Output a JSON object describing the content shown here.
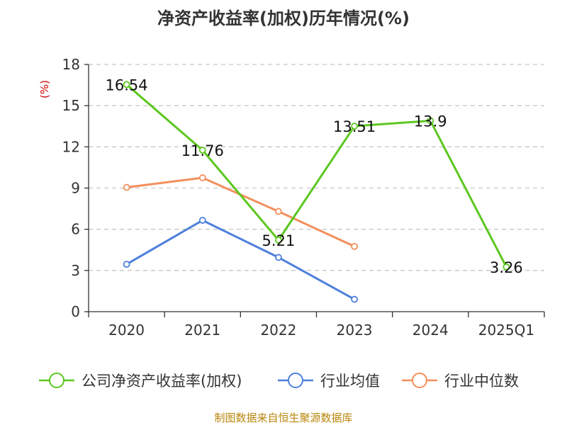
{
  "chart_data": {
    "type": "line",
    "title": "净资产收益率(加权)历年情况(%)",
    "ylabel": "(%)",
    "xlabel": "",
    "categories": [
      "2020",
      "2021",
      "2022",
      "2023",
      "2024",
      "2025Q1"
    ],
    "ylim": [
      0,
      18
    ],
    "yticks": [
      0,
      3,
      6,
      9,
      12,
      15,
      18
    ],
    "grid": true,
    "legend_position": "bottom",
    "series": [
      {
        "name": "公司净资产收益率(加权)",
        "color": "#5cc71f",
        "values": [
          16.54,
          11.76,
          5.21,
          13.51,
          13.9,
          3.26
        ],
        "labels": [
          "16.54",
          "11.76",
          "5.21",
          "13.51",
          "13.9",
          "3.26"
        ]
      },
      {
        "name": "行业均值",
        "color": "#4e7fdc",
        "values": [
          3.45,
          6.65,
          3.95,
          0.9,
          null,
          null
        ]
      },
      {
        "name": "行业中位数",
        "color": "#f28f5c",
        "values": [
          9.05,
          9.75,
          7.3,
          4.75,
          null,
          null
        ]
      }
    ]
  },
  "footer": "制图数据来自恒生聚源数据库"
}
